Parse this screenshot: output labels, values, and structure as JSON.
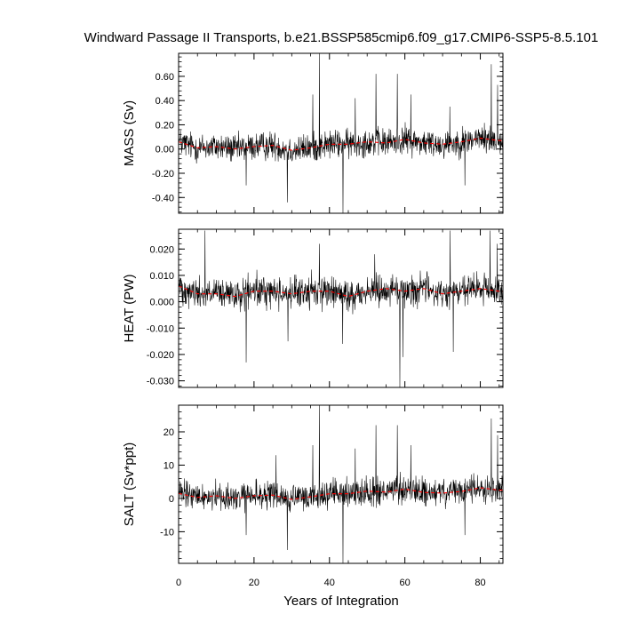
{
  "chart_data": {
    "type": "line",
    "title": "Windward Passage II Transports, b.e21.BSSP585cmip6.f09_g17.CMIP6-SSP5-8.5.101",
    "xlabel": "Years of Integration",
    "xlim": [
      0,
      86
    ],
    "xticks": [
      0,
      20,
      40,
      60,
      80
    ],
    "x_tick_labels": [
      "0",
      "20",
      "40",
      "60",
      "80"
    ],
    "grid": false,
    "series_colors": {
      "raw": "#000000",
      "running_mean": "#ff0000"
    },
    "panels": [
      {
        "name": "mass",
        "ylabel": "MASS (Sv)",
        "ylim": [
          -0.53,
          0.79
        ],
        "yticks": [
          -0.4,
          -0.2,
          0.0,
          0.2,
          0.4,
          0.6
        ],
        "y_tick_labels": [
          "-0.40",
          "-0.20",
          "0.00",
          "0.20",
          "0.40",
          "0.60"
        ],
        "noise_amplitude": 0.075,
        "spikes": [
          {
            "x": 37.3,
            "y": 0.79
          },
          {
            "x": 43.6,
            "y": -0.53
          },
          {
            "x": 28.8,
            "y": -0.44
          },
          {
            "x": 82.9,
            "y": 0.7
          },
          {
            "x": 58.0,
            "y": 0.62
          },
          {
            "x": 52.3,
            "y": 0.62
          },
          {
            "x": 35.6,
            "y": 0.45
          },
          {
            "x": 75.9,
            "y": -0.3
          },
          {
            "x": 17.9,
            "y": -0.3
          },
          {
            "x": 46.8,
            "y": 0.42
          },
          {
            "x": 61.6,
            "y": 0.45
          },
          {
            "x": 84.6,
            "y": 0.53
          },
          {
            "x": 71.9,
            "y": 0.35
          }
        ],
        "running_mean": {
          "x": [
            0,
            5,
            10,
            15,
            20,
            25,
            30,
            35,
            40,
            45,
            50,
            55,
            60,
            65,
            70,
            75,
            80,
            85
          ],
          "y": [
            0.06,
            0.01,
            0.02,
            0.0,
            0.02,
            0.03,
            -0.01,
            0.01,
            0.04,
            0.04,
            0.06,
            0.05,
            0.08,
            0.05,
            0.04,
            0.06,
            0.09,
            0.07
          ]
        }
      },
      {
        "name": "heat",
        "ylabel": "HEAT (PW)",
        "ylim": [
          -0.0325,
          0.0275
        ],
        "yticks": [
          -0.03,
          -0.02,
          -0.01,
          0.0,
          0.01,
          0.02
        ],
        "y_tick_labels": [
          "-0.030",
          "-0.020",
          "-0.010",
          "0.000",
          "0.010",
          "0.020"
        ],
        "noise_amplitude": 0.0038,
        "spikes": [
          {
            "x": 58.7,
            "y": -0.0325
          },
          {
            "x": 17.9,
            "y": -0.023
          },
          {
            "x": 7.0,
            "y": 0.027
          },
          {
            "x": 72.0,
            "y": 0.027
          },
          {
            "x": 82.6,
            "y": 0.027
          },
          {
            "x": 59.5,
            "y": -0.021
          },
          {
            "x": 72.8,
            "y": -0.019
          },
          {
            "x": 37.3,
            "y": 0.022
          },
          {
            "x": 84.5,
            "y": 0.022
          },
          {
            "x": 29.0,
            "y": -0.015
          },
          {
            "x": 52.0,
            "y": 0.018
          },
          {
            "x": 43.5,
            "y": -0.016
          }
        ],
        "running_mean": {
          "x": [
            0,
            5,
            10,
            15,
            20,
            25,
            30,
            35,
            40,
            45,
            50,
            55,
            60,
            65,
            70,
            75,
            80,
            85
          ],
          "y": [
            0.006,
            0.003,
            0.003,
            0.002,
            0.004,
            0.004,
            0.003,
            0.004,
            0.004,
            0.002,
            0.004,
            0.005,
            0.004,
            0.005,
            0.003,
            0.004,
            0.005,
            0.004
          ]
        }
      },
      {
        "name": "salt",
        "ylabel": "SALT (Sv*ppt)",
        "ylim": [
          -19.5,
          28.0
        ],
        "yticks": [
          -10,
          0,
          10,
          20
        ],
        "y_tick_labels": [
          "-10",
          "0",
          "10",
          "20"
        ],
        "noise_amplitude": 2.7,
        "spikes": [
          {
            "x": 37.3,
            "y": 28.0
          },
          {
            "x": 43.6,
            "y": -19.5
          },
          {
            "x": 28.8,
            "y": -15.5
          },
          {
            "x": 82.9,
            "y": 24.0
          },
          {
            "x": 58.0,
            "y": 22.0
          },
          {
            "x": 52.3,
            "y": 22.0
          },
          {
            "x": 35.6,
            "y": 16.0
          },
          {
            "x": 75.9,
            "y": -11.0
          },
          {
            "x": 17.9,
            "y": -11.0
          },
          {
            "x": 46.8,
            "y": 15.0
          },
          {
            "x": 61.6,
            "y": 16.0
          },
          {
            "x": 84.6,
            "y": 19.0
          },
          {
            "x": 25.8,
            "y": 13.0
          }
        ],
        "running_mean": {
          "x": [
            0,
            5,
            10,
            15,
            20,
            25,
            30,
            35,
            40,
            45,
            50,
            55,
            60,
            65,
            70,
            75,
            80,
            85
          ],
          "y": [
            1.5,
            0.3,
            0.8,
            0.0,
            0.8,
            1.0,
            -0.3,
            0.5,
            1.4,
            1.4,
            2.2,
            1.9,
            2.8,
            1.8,
            1.6,
            2.1,
            3.2,
            2.5
          ]
        }
      }
    ]
  }
}
